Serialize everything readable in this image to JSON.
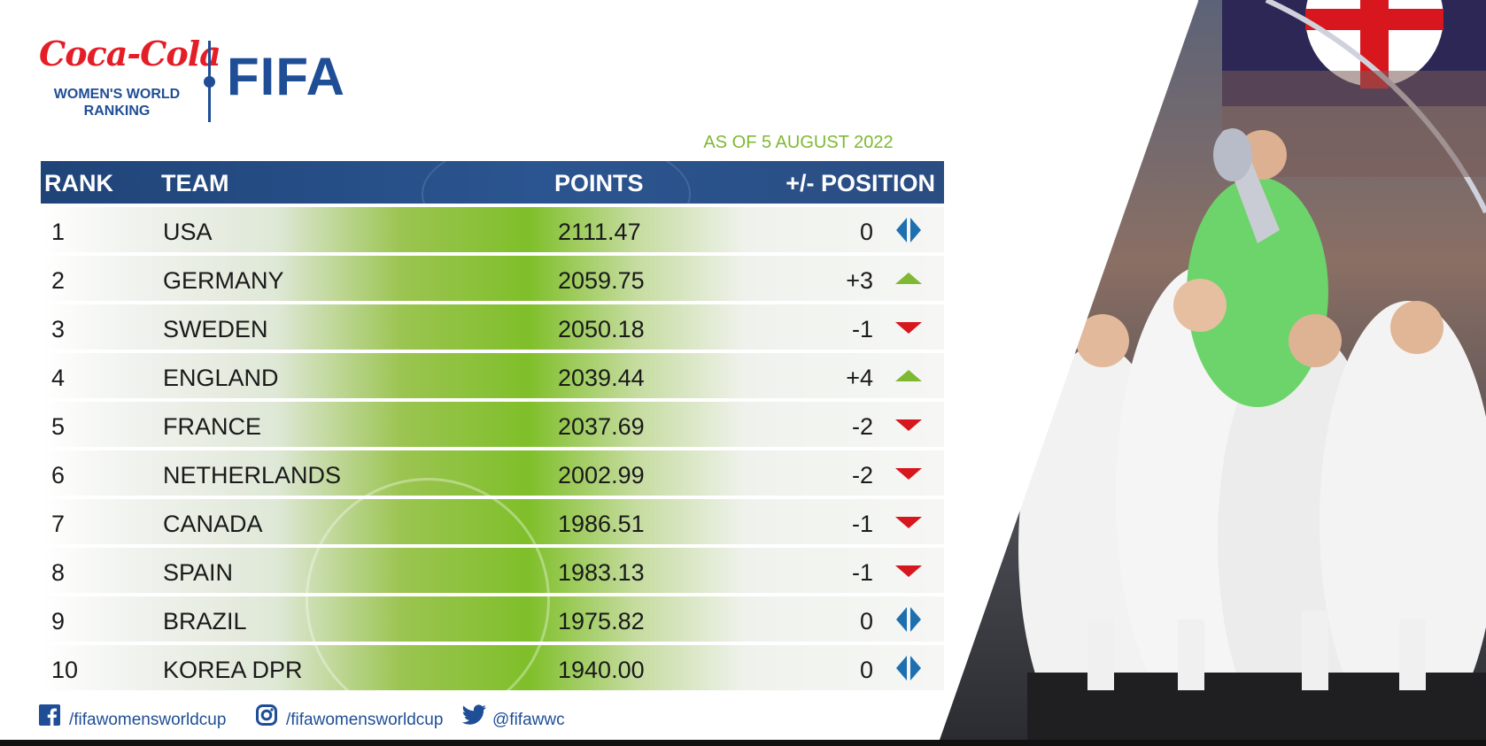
{
  "logo": {
    "brand_script": "Coca-Cola",
    "subtitle_line1": "WOMEN'S WORLD",
    "subtitle_line2": "RANKING",
    "fifa": "FIFA"
  },
  "as_of": "AS OF 5 AUGUST 2022",
  "table": {
    "headers": {
      "rank": "RANK",
      "team": "TEAM",
      "points": "POINTS",
      "position": "+/- POSITION"
    },
    "rows": [
      {
        "rank": "1",
        "team": "USA",
        "points": "2111.47",
        "change": "0",
        "trend": "same"
      },
      {
        "rank": "2",
        "team": "GERMANY",
        "points": "2059.75",
        "change": "+3",
        "trend": "up"
      },
      {
        "rank": "3",
        "team": "SWEDEN",
        "points": "2050.18",
        "change": "-1",
        "trend": "down"
      },
      {
        "rank": "4",
        "team": "ENGLAND",
        "points": "2039.44",
        "change": "+4",
        "trend": "up"
      },
      {
        "rank": "5",
        "team": "FRANCE",
        "points": "2037.69",
        "change": "-2",
        "trend": "down"
      },
      {
        "rank": "6",
        "team": "NETHERLANDS",
        "points": "2002.99",
        "change": "-2",
        "trend": "down"
      },
      {
        "rank": "7",
        "team": "CANADA",
        "points": "1986.51",
        "change": "-1",
        "trend": "down"
      },
      {
        "rank": "8",
        "team": "SPAIN",
        "points": "1983.13",
        "change": "-1",
        "trend": "down"
      },
      {
        "rank": "9",
        "team": "BRAZIL",
        "points": "1975.82",
        "change": "0",
        "trend": "same"
      },
      {
        "rank": "10",
        "team": "KOREA DPR",
        "points": "1940.00",
        "change": "0",
        "trend": "same"
      }
    ]
  },
  "footer": {
    "facebook": "/fifawomensworldcup",
    "instagram": "/fifawomensworldcup",
    "twitter": "@fifawwc"
  },
  "colors": {
    "navy": "#1f4e96",
    "up": "#7fb832",
    "down": "#d7161e",
    "same": "#1e6fb0",
    "coke_red": "#e41e26"
  },
  "icons": {
    "facebook": "facebook-icon",
    "instagram": "instagram-icon",
    "twitter": "twitter-icon",
    "up": "arrow-up-icon",
    "down": "arrow-down-icon",
    "same": "no-change-icon"
  }
}
